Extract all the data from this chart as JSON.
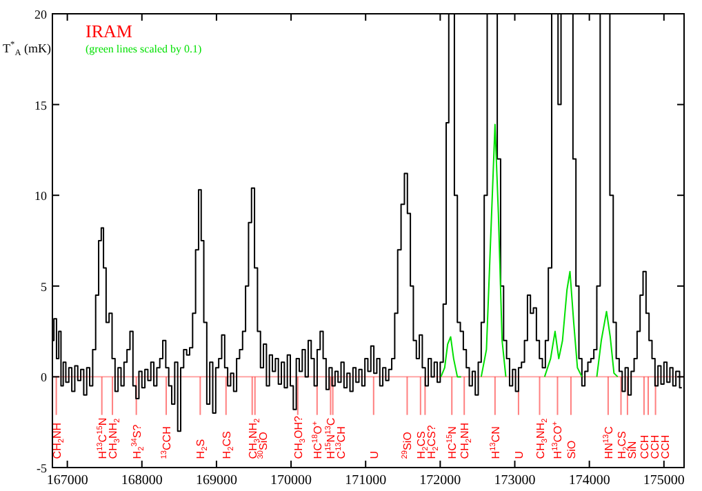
{
  "chart_data": {
    "type": "line",
    "title": "IRAM",
    "ylabel": "T$^{*}$$_{A}$ (mK)",
    "annotations": [
      "(green lines scaled by 0.1)"
    ],
    "xlim": [
      166800,
      175270
    ],
    "xticks": [
      167000,
      168000,
      169000,
      170000,
      171000,
      172000,
      173000,
      174000,
      175000
    ],
    "ylim": [
      -5,
      20
    ],
    "yticks": [
      -5,
      0,
      5,
      10,
      15,
      20
    ],
    "series": [
      {
        "type": "step",
        "color": "#000000",
        "x": [
          166800,
          166840,
          166870,
          166900,
          166930,
          166960,
          167000,
          167040,
          167080,
          167120,
          167160,
          167200,
          167240,
          167280,
          167320,
          167360,
          167400,
          167440,
          167470,
          167500,
          167540,
          167580,
          167620,
          167660,
          167700,
          167740,
          167780,
          167820,
          167860,
          167900,
          167940,
          167980,
          168020,
          168060,
          168100,
          168140,
          168180,
          168220,
          168260,
          168300,
          168340,
          168380,
          168420,
          168460,
          168500,
          168540,
          168580,
          168620,
          168660,
          168700,
          168740,
          168780,
          168810,
          168850,
          168890,
          168930,
          168970,
          169010,
          169050,
          169090,
          169130,
          169170,
          169210,
          169250,
          169290,
          169330,
          169370,
          169410,
          169450,
          169490,
          169530,
          169570,
          169610,
          169650,
          169690,
          169730,
          169770,
          169810,
          169850,
          169890,
          169930,
          169970,
          170010,
          170050,
          170090,
          170130,
          170170,
          170210,
          170250,
          170290,
          170330,
          170370,
          170410,
          170450,
          170490,
          170530,
          170570,
          170610,
          170650,
          170690,
          170730,
          170770,
          170810,
          170850,
          170890,
          170930,
          170970,
          171010,
          171050,
          171090,
          171130,
          171170,
          171210,
          171250,
          171290,
          171330,
          171370,
          171410,
          171450,
          171500,
          171540,
          171580,
          171620,
          171660,
          171700,
          171740,
          171780,
          171820,
          171860,
          171900,
          171940,
          171980,
          172020,
          172060,
          172100,
          172130,
          172170,
          172210,
          172250,
          172290,
          172330,
          172370,
          172410,
          172450,
          172490,
          172530,
          172570,
          172610,
          172650,
          172740,
          172790,
          172830,
          172870,
          172910,
          172950,
          172990,
          173030,
          173070,
          173110,
          173150,
          173190,
          173230,
          173270,
          173310,
          173350,
          173390,
          173430,
          173470,
          173520,
          173560,
          173600,
          173640,
          173700,
          173760,
          173800,
          173840,
          173880,
          173920,
          173960,
          174000,
          174040,
          174080,
          174120,
          174170,
          174250,
          174300,
          174340,
          174380,
          174420,
          174460,
          174500,
          174540,
          174580,
          174620,
          174660,
          174700,
          174740,
          174780,
          174820,
          174860,
          174900,
          174940,
          174980,
          175020,
          175060,
          175100,
          175140,
          175180,
          175240
        ],
        "values": [
          2.0,
          3.2,
          1.0,
          2.5,
          -0.5,
          0.8,
          -0.3,
          0.5,
          -0.8,
          0.6,
          -0.2,
          0.4,
          -1.0,
          0.5,
          -0.5,
          1.5,
          4.5,
          7.5,
          8.2,
          6.0,
          3.0,
          3.5,
          1.0,
          -0.8,
          0.5,
          -0.5,
          0.8,
          1.5,
          2.5,
          -0.5,
          -1.2,
          0.3,
          -0.6,
          0.4,
          -0.2,
          0.8,
          -0.5,
          0.5,
          1.0,
          2.0,
          0.5,
          -0.5,
          -1.5,
          0.8,
          -3.0,
          0.5,
          1.5,
          1.2,
          1.6,
          3.5,
          7.0,
          10.3,
          7.5,
          3.0,
          -1.5,
          0.8,
          -2.0,
          0.5,
          1.0,
          2.3,
          0.5,
          -0.5,
          0.2,
          -0.8,
          1.0,
          1.5,
          2.5,
          5.0,
          8.5,
          10.4,
          6.0,
          2.5,
          0.5,
          1.8,
          -0.5,
          1.2,
          0.3,
          1.0,
          -0.4,
          0.8,
          -0.6,
          1.2,
          -0.5,
          -1.8,
          1.0,
          0.3,
          1.5,
          0.0,
          2.0,
          1.0,
          -0.5,
          1.5,
          2.5,
          1.0,
          -0.7,
          0.5,
          -0.5,
          0.3,
          -0.3,
          0.8,
          -0.6,
          0.2,
          -0.8,
          0.5,
          -0.3,
          0.4,
          -0.5,
          1.0,
          0.3,
          1.7,
          0.2,
          1.0,
          -0.5,
          0.5,
          -0.2,
          0.4,
          1.0,
          3.5,
          7.0,
          9.5,
          11.2,
          9.0,
          5.0,
          2.0,
          1.0,
          2.3,
          0.5,
          -0.5,
          1.0,
          0.0,
          0.8,
          -0.3,
          0.8,
          4.0,
          14.0,
          20,
          20,
          10.0,
          3.0,
          2.5,
          1.5,
          0.5,
          -0.5,
          0.3,
          -1.0,
          0.8,
          3.0,
          10.0,
          20,
          20,
          12.0,
          5.0,
          2.0,
          1.0,
          -0.5,
          0.4,
          -0.8,
          0.5,
          0.8,
          2.0,
          4.5,
          3.5,
          3.8,
          2.0,
          1.0,
          0.5,
          2.0,
          6.0,
          20,
          20,
          15.0,
          20,
          20,
          20,
          12.0,
          5.0,
          1.0,
          -0.5,
          0.3,
          0.8,
          1.0,
          1.5,
          5.0,
          20,
          20,
          10.0,
          3.0,
          1.0,
          0.3,
          -0.8,
          0.5,
          -1.0,
          0.3,
          1.0,
          2.5,
          4.5,
          5.8,
          3.5,
          2.0,
          1.0,
          -0.5,
          0.6,
          -0.4,
          0.8,
          -0.3,
          0.5,
          -0.5,
          0.3,
          -0.6
        ]
      },
      {
        "type": "line",
        "color": "#00e000",
        "x": [
          172010,
          172060,
          172100,
          172140,
          172180,
          172230,
          172280,
          172400,
          172550,
          172620,
          172680,
          172735,
          172780,
          172830,
          172880,
          173100,
          173400,
          173480,
          173540,
          173590,
          173640,
          173700,
          173740,
          173790,
          173840,
          173900,
          174050,
          174100,
          174160,
          174230,
          174280,
          174330,
          174380
        ],
        "values": [
          0,
          0.5,
          1.8,
          2.2,
          1.0,
          0,
          0,
          null,
          0,
          1.5,
          8,
          13.9,
          9,
          2,
          0,
          null,
          0,
          1.0,
          2.5,
          1.0,
          2,
          4.8,
          5.8,
          3,
          0.5,
          0,
          null,
          0,
          2,
          3.6,
          2.2,
          0.2,
          0
        ]
      }
    ],
    "ref_lines": [
      {
        "axis": "y",
        "value": 0,
        "color": "#ff9999"
      },
      {
        "axis": "x",
        "value": 166852,
        "label": "CH$_{2}$NH",
        "color": "#ff0000"
      },
      {
        "axis": "x",
        "value": 167463,
        "label": "H$^{13}$C$^{15}$N",
        "color": "#ff0000"
      },
      {
        "axis": "x",
        "value": 167605,
        "label": "CH$_{3}$NH$_{2}$",
        "color": "#ff0000"
      },
      {
        "axis": "x",
        "value": 167925,
        "label": "H$_{2}$$^{34}$S?",
        "color": "#ff0000"
      },
      {
        "axis": "x",
        "value": 168326,
        "label": "$^{13}$CCH",
        "color": "#ff0000"
      },
      {
        "axis": "x",
        "value": 168782,
        "label": "H$_{2}$S",
        "color": "#ff0000"
      },
      {
        "axis": "x",
        "value": 169128,
        "label": "H$_{2}$CS",
        "color": "#ff0000"
      },
      {
        "axis": "x",
        "value": 169479,
        "label": "CH$_{3}$NH$_{2}$",
        "color": "#ff0000"
      },
      {
        "axis": "x",
        "value": 169516,
        "label": "$^{30}$SiO",
        "color": "#ff0000"
      },
      {
        "axis": "x",
        "value": 170090,
        "label": "CH$_{3}$OH?",
        "color": "#ff0000"
      },
      {
        "axis": "x",
        "value": 170349,
        "label": "HC$^{18}$O$^{+}$",
        "color": "#ff0000"
      },
      {
        "axis": "x",
        "value": 170530,
        "label": "H$^{15}$N$^{13}$C",
        "color": "#ff0000"
      },
      {
        "axis": "x",
        "value": 170560,
        "label": "C$^{13}$CH",
        "color": "#ff0000"
      },
      {
        "axis": "x",
        "value": 171107,
        "label": "U",
        "color": "#ff0000"
      },
      {
        "axis": "x",
        "value": 171557,
        "label": "$^{29}$SiO",
        "color": "#ff0000"
      },
      {
        "axis": "x",
        "value": 171736,
        "label": "H$_{2}$CS",
        "color": "#ff0000"
      },
      {
        "axis": "x",
        "value": 171797,
        "label": "H$_{2}$CS?",
        "color": "#ff0000"
      },
      {
        "axis": "x",
        "value": 172156,
        "label": "HC$^{15}$N",
        "color": "#ff0000"
      },
      {
        "axis": "x",
        "value": 172322,
        "label": "CH$_{2}$NH",
        "color": "#ff0000"
      },
      {
        "axis": "x",
        "value": 172735,
        "label": "H$^{13}$CN",
        "color": "#ff0000"
      },
      {
        "axis": "x",
        "value": 173050,
        "label": "U",
        "color": "#ff0000"
      },
      {
        "axis": "x",
        "value": 173333,
        "label": "CH$_{3}$NH$_{2}$",
        "color": "#ff0000"
      },
      {
        "axis": "x",
        "value": 173573,
        "label": "H$^{13}$CO$^{+}$",
        "color": "#ff0000"
      },
      {
        "axis": "x",
        "value": 173753,
        "label": "SiO",
        "color": "#ff0000"
      },
      {
        "axis": "x",
        "value": 174252,
        "label": "HN$^{13}$C",
        "color": "#ff0000"
      },
      {
        "axis": "x",
        "value": 174424,
        "label": "H$_{2}$CS",
        "color": "#ff0000"
      },
      {
        "axis": "x",
        "value": 174511,
        "label": "SiN",
        "color": "#ff0000"
      },
      {
        "axis": "x",
        "value": 174733,
        "label": "CCH",
        "color": "#ff0000"
      },
      {
        "axis": "x",
        "value": 174789,
        "label": "CCH",
        "color": "#ff0000"
      },
      {
        "axis": "x",
        "value": 174887,
        "label": "CCH",
        "color": "#ff0000"
      }
    ]
  }
}
